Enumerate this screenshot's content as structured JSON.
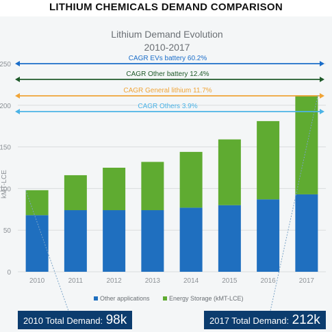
{
  "header": {
    "title": "LITHIUM CHEMICALS DEMAND COMPARISON"
  },
  "chart_data": {
    "type": "bar",
    "stacked": true,
    "title": "Lithium Demand Evolution",
    "subtitle": "2010-2017",
    "ylabel": "kMT-LCE",
    "ylim": [
      0,
      250
    ],
    "yticks": [
      0,
      50,
      100,
      150,
      200,
      250
    ],
    "categories": [
      "2010",
      "2011",
      "2012",
      "2013",
      "2014",
      "2015",
      "2016",
      "2017"
    ],
    "series": [
      {
        "name": "Other applications",
        "color": "#1f6fbf",
        "values": [
          68,
          74,
          74,
          74,
          77,
          80,
          87,
          93
        ]
      },
      {
        "name": "Energy Storage (kMT-LCE)",
        "color": "#5fab31",
        "values": [
          30,
          42,
          51,
          58,
          67,
          79,
          94,
          119
        ]
      }
    ],
    "annotations": [
      {
        "text": "CAGR EVs battery 60.2%",
        "color": "#1a6dc9"
      },
      {
        "text": "CAGR Other battery 12.4%",
        "color": "#1f5a2a"
      },
      {
        "text": "CAGR General lithium 11.7%",
        "color": "#f0a436"
      },
      {
        "text": "CAGR Others 3.9%",
        "color": "#4bb3e6"
      }
    ],
    "legend": "bottom",
    "grid": true
  },
  "callouts": [
    {
      "label": "2010 Total Demand:",
      "value": "98k"
    },
    {
      "label": "2017 Total Demand:",
      "value": "212k"
    }
  ]
}
